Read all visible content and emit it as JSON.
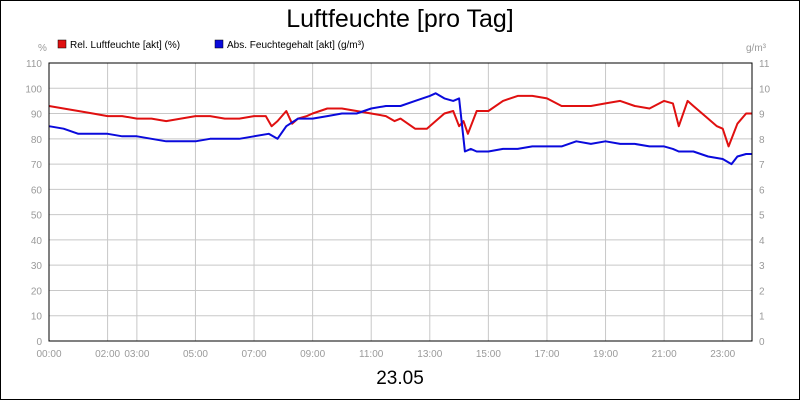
{
  "chart_data": {
    "type": "line",
    "title": "Luftfeuchte [pro Tag]",
    "date_label": "23.05",
    "y_left_unit": "%",
    "y_right_unit": "g/m³",
    "y_left_lim": [
      0,
      110
    ],
    "y_right_lim": [
      0,
      11
    ],
    "y_left_ticks": [
      "0",
      "10",
      "20",
      "30",
      "40",
      "50",
      "60",
      "70",
      "80",
      "90",
      "100",
      "110"
    ],
    "y_right_ticks": [
      "0",
      "1",
      "2",
      "3",
      "4",
      "5",
      "6",
      "7",
      "8",
      "9",
      "10",
      "11"
    ],
    "x_lim": [
      0,
      24
    ],
    "x_ticks": [
      {
        "x": 0,
        "label": "00:00"
      },
      {
        "x": 2,
        "label": "02:00"
      },
      {
        "x": 3,
        "label": "03:00"
      },
      {
        "x": 5,
        "label": "05:00"
      },
      {
        "x": 7,
        "label": "07:00"
      },
      {
        "x": 9,
        "label": "09:00"
      },
      {
        "x": 11,
        "label": "11:00"
      },
      {
        "x": 13,
        "label": "13:00"
      },
      {
        "x": 15,
        "label": "15:00"
      },
      {
        "x": 17,
        "label": "17:00"
      },
      {
        "x": 19,
        "label": "19:00"
      },
      {
        "x": 21,
        "label": "21:00"
      },
      {
        "x": 23,
        "label": "23:00"
      }
    ],
    "grid": true,
    "legend_position": "top-left",
    "series": [
      {
        "name": "Rel. Luftfeuchte [akt] (%)",
        "color": "#e01010",
        "axis": "left",
        "x": [
          0,
          0.5,
          1,
          1.5,
          2,
          2.5,
          3,
          3.5,
          4,
          4.5,
          5,
          5.5,
          6,
          6.5,
          7,
          7.4,
          7.6,
          7.8,
          8.1,
          8.3,
          8.5,
          8.8,
          9,
          9.5,
          10,
          10.5,
          11,
          11.5,
          11.8,
          12,
          12.5,
          12.9,
          13.2,
          13.5,
          13.8,
          14,
          14.15,
          14.3,
          14.6,
          15,
          15.5,
          16,
          16.5,
          17,
          17.5,
          18,
          18.5,
          19,
          19.5,
          20,
          20.5,
          21,
          21.3,
          21.5,
          21.8,
          22,
          22.5,
          22.8,
          23,
          23.2,
          23.5,
          23.8,
          24
        ],
        "values": [
          93,
          92,
          91,
          90,
          89,
          89,
          88,
          88,
          87,
          88,
          89,
          89,
          88,
          88,
          89,
          89,
          85,
          87,
          91,
          86,
          88,
          89,
          90,
          92,
          92,
          91,
          90,
          89,
          87,
          88,
          84,
          84,
          87,
          90,
          91,
          85,
          87,
          82,
          91,
          91,
          95,
          97,
          97,
          96,
          93,
          93,
          93,
          94,
          95,
          93,
          92,
          95,
          94,
          85,
          95,
          93,
          88,
          85,
          84,
          77,
          86,
          90,
          90
        ]
      },
      {
        "name": "Abs. Feuchtegehalt [akt] (g/m³)",
        "color": "#0a0adc",
        "axis": "right",
        "x": [
          0,
          0.5,
          1,
          1.5,
          2,
          2.5,
          3,
          3.5,
          4,
          4.5,
          5,
          5.5,
          6,
          6.5,
          7,
          7.5,
          7.8,
          8.1,
          8.5,
          9,
          9.5,
          10,
          10.5,
          11,
          11.5,
          12,
          12.5,
          13,
          13.2,
          13.5,
          13.8,
          14,
          14.2,
          14.4,
          14.6,
          15,
          15.5,
          16,
          16.5,
          17,
          17.5,
          18,
          18.5,
          19,
          19.5,
          20,
          20.5,
          21,
          21.3,
          21.5,
          22,
          22.5,
          23,
          23.3,
          23.5,
          23.8,
          24
        ],
        "values": [
          8.5,
          8.4,
          8.2,
          8.2,
          8.2,
          8.1,
          8.1,
          8.0,
          7.9,
          7.9,
          7.9,
          8.0,
          8.0,
          8.0,
          8.1,
          8.2,
          8.0,
          8.5,
          8.8,
          8.8,
          8.9,
          9.0,
          9.0,
          9.2,
          9.3,
          9.3,
          9.5,
          9.7,
          9.8,
          9.6,
          9.5,
          9.6,
          7.5,
          7.6,
          7.5,
          7.5,
          7.6,
          7.6,
          7.7,
          7.7,
          7.7,
          7.9,
          7.8,
          7.9,
          7.8,
          7.8,
          7.7,
          7.7,
          7.6,
          7.5,
          7.5,
          7.3,
          7.2,
          7.0,
          7.3,
          7.4,
          7.4
        ]
      }
    ]
  }
}
